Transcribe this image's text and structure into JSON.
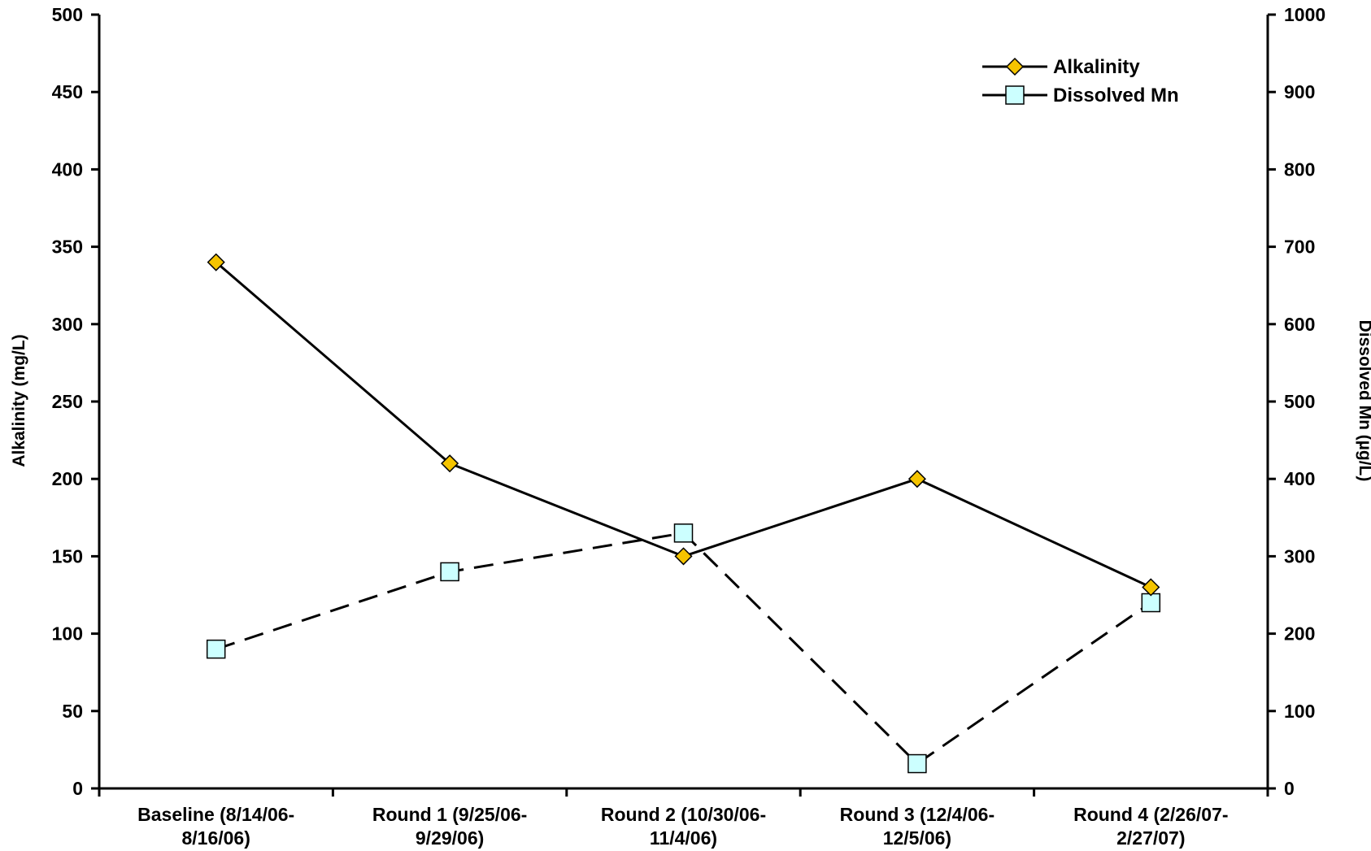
{
  "chart_data": {
    "type": "line",
    "categories": [
      [
        "Baseline (8/14/06-",
        "8/16/06)"
      ],
      [
        "Round 1 (9/25/06-",
        "9/29/06)"
      ],
      [
        "Round 2 (10/30/06-",
        "11/4/06)"
      ],
      [
        "Round 3 (12/4/06-",
        "12/5/06)"
      ],
      [
        "Round 4 (2/26/07-",
        "2/27/07)"
      ]
    ],
    "series": [
      {
        "name": "Alkalinity",
        "axis": "left",
        "values": [
          340,
          210,
          150,
          200,
          130
        ],
        "line_style": "solid",
        "marker": "diamond",
        "marker_color": "#F5C400"
      },
      {
        "name": "Dissolved Mn",
        "axis": "right",
        "values": [
          180,
          280,
          330,
          32,
          240
        ],
        "line_style": "dashed",
        "marker": "square",
        "marker_color": "#CCFFFF"
      }
    ],
    "ylabel": "Alkalinity (mg/L)",
    "y2label": "Dissolved Mn (µg/L)",
    "ylim": [
      0,
      500
    ],
    "y2lim": [
      0,
      1000
    ],
    "yticks": [
      0,
      50,
      100,
      150,
      200,
      250,
      300,
      350,
      400,
      450,
      500
    ],
    "y2ticks": [
      0,
      100,
      200,
      300,
      400,
      500,
      600,
      700,
      800,
      900,
      1000
    ],
    "grid": false,
    "legend_position": "top-right"
  }
}
